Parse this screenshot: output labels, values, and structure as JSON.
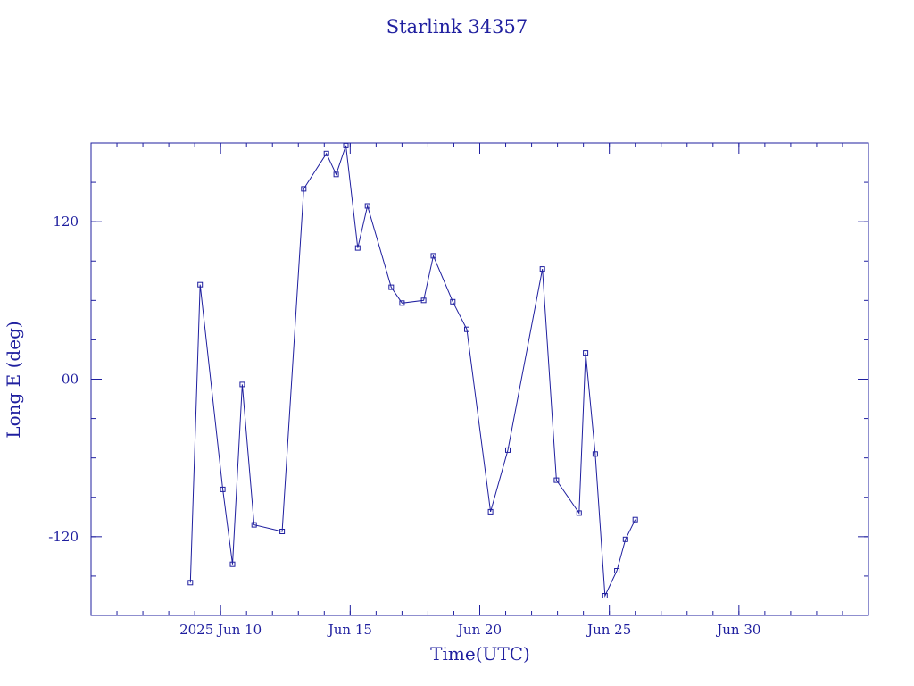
{
  "chart_data": {
    "type": "line",
    "title": "Starlink 34357",
    "xlabel": "Time(UTC)",
    "ylabel": "Long E (deg)",
    "color": "#1f1f9f",
    "xlim": [
      "2025-06-05",
      "2025-07-05"
    ],
    "ylim": [
      -180,
      180
    ],
    "x_ticks": [
      {
        "x": "2025-06-10",
        "label": "2025 Jun 10"
      },
      {
        "x": "2025-06-15",
        "label": "Jun 15"
      },
      {
        "x": "2025-06-20",
        "label": "Jun 20"
      },
      {
        "x": "2025-06-25",
        "label": "Jun 25"
      },
      {
        "x": "2025-06-30",
        "label": "Jun 30"
      }
    ],
    "y_ticks": [
      {
        "y": 120,
        "label": "120"
      },
      {
        "y": 0,
        "label": "00"
      },
      {
        "y": -120,
        "label": "-120"
      }
    ],
    "grid": false,
    "series": [
      {
        "values": [
          {
            "x": "2025-06-08 20:00",
            "y": -155.0
          },
          {
            "x": "2025-06-09 05:00",
            "y": 72.0
          },
          {
            "x": "2025-06-10 02:00",
            "y": -84.0
          },
          {
            "x": "2025-06-10 11:00",
            "y": -141.0
          },
          {
            "x": "2025-06-10 20:00",
            "y": -4.0
          },
          {
            "x": "2025-06-11 07:00",
            "y": -111.0
          },
          {
            "x": "2025-06-12 09:00",
            "y": -116.0
          },
          {
            "x": "2025-06-13 05:00",
            "y": 145.0
          },
          {
            "x": "2025-06-14 02:00",
            "y": 172.0
          },
          {
            "x": "2025-06-14 11:00",
            "y": 156.0
          },
          {
            "x": "2025-06-14 20:00",
            "y": 178.0
          },
          {
            "x": "2025-06-15 07:00",
            "y": 100.0
          },
          {
            "x": "2025-06-15 16:00",
            "y": 132.0
          },
          {
            "x": "2025-06-16 14:00",
            "y": 70.0
          },
          {
            "x": "2025-06-17 00:00",
            "y": 58.0
          },
          {
            "x": "2025-06-17 20:00",
            "y": 60.0
          },
          {
            "x": "2025-06-18 05:00",
            "y": 94.0
          },
          {
            "x": "2025-06-18 23:00",
            "y": 59.0
          },
          {
            "x": "2025-06-19 12:00",
            "y": 38.0
          },
          {
            "x": "2025-06-20 10:00",
            "y": -101.0
          },
          {
            "x": "2025-06-21 02:00",
            "y": -54.0
          },
          {
            "x": "2025-06-22 10:00",
            "y": 84.0
          },
          {
            "x": "2025-06-22 23:00",
            "y": -77.0
          },
          {
            "x": "2025-06-23 20:00",
            "y": -102.0
          },
          {
            "x": "2025-06-24 02:00",
            "y": 20.0
          },
          {
            "x": "2025-06-24 11:00",
            "y": -57.0
          },
          {
            "x": "2025-06-24 20:00",
            "y": -165.0
          },
          {
            "x": "2025-06-25 07:00",
            "y": -146.0
          },
          {
            "x": "2025-06-25 15:00",
            "y": -122.0
          },
          {
            "x": "2025-06-26 00:00",
            "y": -107.0
          }
        ]
      }
    ]
  }
}
